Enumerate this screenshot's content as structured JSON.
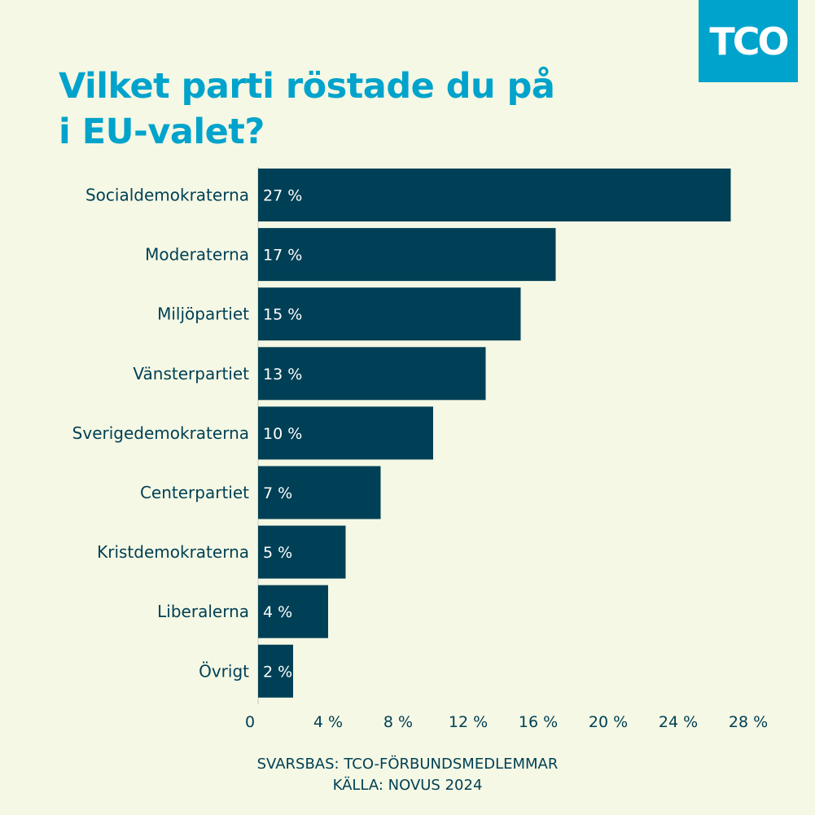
{
  "logo": {
    "text": "TCO"
  },
  "title_lines": [
    "Vilket parti röstade du på",
    "i EU-valet?"
  ],
  "chart_data": {
    "type": "bar",
    "orientation": "horizontal",
    "title": "Vilket parti röstade du på i EU-valet?",
    "categories": [
      "Socialdemokraterna",
      "Moderaterna",
      "Miljöpartiet",
      "Vänsterpartiet",
      "Sverigedemokraterna",
      "Centerpartiet",
      "Kristdemokraterna",
      "Liberalerna",
      "Övrigt"
    ],
    "values": [
      27,
      17,
      15,
      13,
      10,
      7,
      5,
      4,
      2
    ],
    "value_labels": [
      "27 %",
      "17 %",
      "15 %",
      "13 %",
      "10 %",
      "7 %",
      "5 %",
      "4 %",
      "2 %"
    ],
    "xlim": [
      0,
      28
    ],
    "x_ticks": [
      0,
      4,
      8,
      12,
      16,
      20,
      24,
      28
    ],
    "x_tick_labels": [
      "0",
      "4 %",
      "8 %",
      "12 %",
      "16 %",
      "20 %",
      "24 %",
      "28 %"
    ],
    "xlabel": "",
    "ylabel": "",
    "grid": false,
    "bar_color": "#004056",
    "value_label_color": "#ffffff"
  },
  "footer": {
    "line1": "SVARSBAS: TCO-FÖRBUNDSMEDLEMMAR",
    "line2": "KÄLLA: NOVUS 2024"
  },
  "colors": {
    "background": "#f5f8e4",
    "accent": "#00a3cc",
    "bar": "#004056",
    "text_dark": "#004056"
  }
}
